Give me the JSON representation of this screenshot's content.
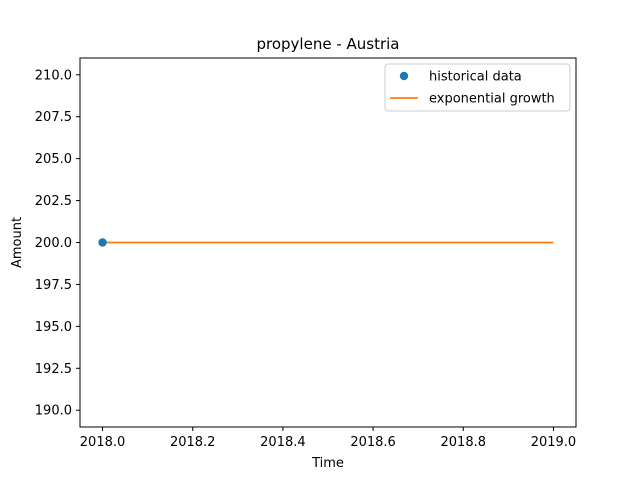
{
  "chart_data": {
    "type": "line",
    "title": "propylene - Austria",
    "xlabel": "Time",
    "ylabel": "Amount",
    "xlim": [
      2017.95,
      2019.05
    ],
    "ylim": [
      189.0,
      211.0
    ],
    "xticks": [
      2018.0,
      2018.2,
      2018.4,
      2018.6,
      2018.8,
      2019.0
    ],
    "xtick_labels": [
      "2018.0",
      "2018.2",
      "2018.4",
      "2018.6",
      "2018.8",
      "2019.0"
    ],
    "yticks": [
      190.0,
      192.5,
      195.0,
      197.5,
      200.0,
      202.5,
      205.0,
      207.5,
      210.0
    ],
    "ytick_labels": [
      "190.0",
      "192.5",
      "195.0",
      "197.5",
      "200.0",
      "202.5",
      "205.0",
      "207.5",
      "210.0"
    ],
    "grid": false,
    "legend_position": "top-right",
    "series": [
      {
        "name": "historical data",
        "kind": "scatter",
        "color": "#1f77b4",
        "x": [
          2018.0
        ],
        "y": [
          200.0
        ]
      },
      {
        "name": "exponential growth",
        "kind": "line",
        "color": "#ff7f0e",
        "x": [
          2018.0,
          2019.0
        ],
        "y": [
          200.0,
          200.0
        ]
      }
    ]
  }
}
